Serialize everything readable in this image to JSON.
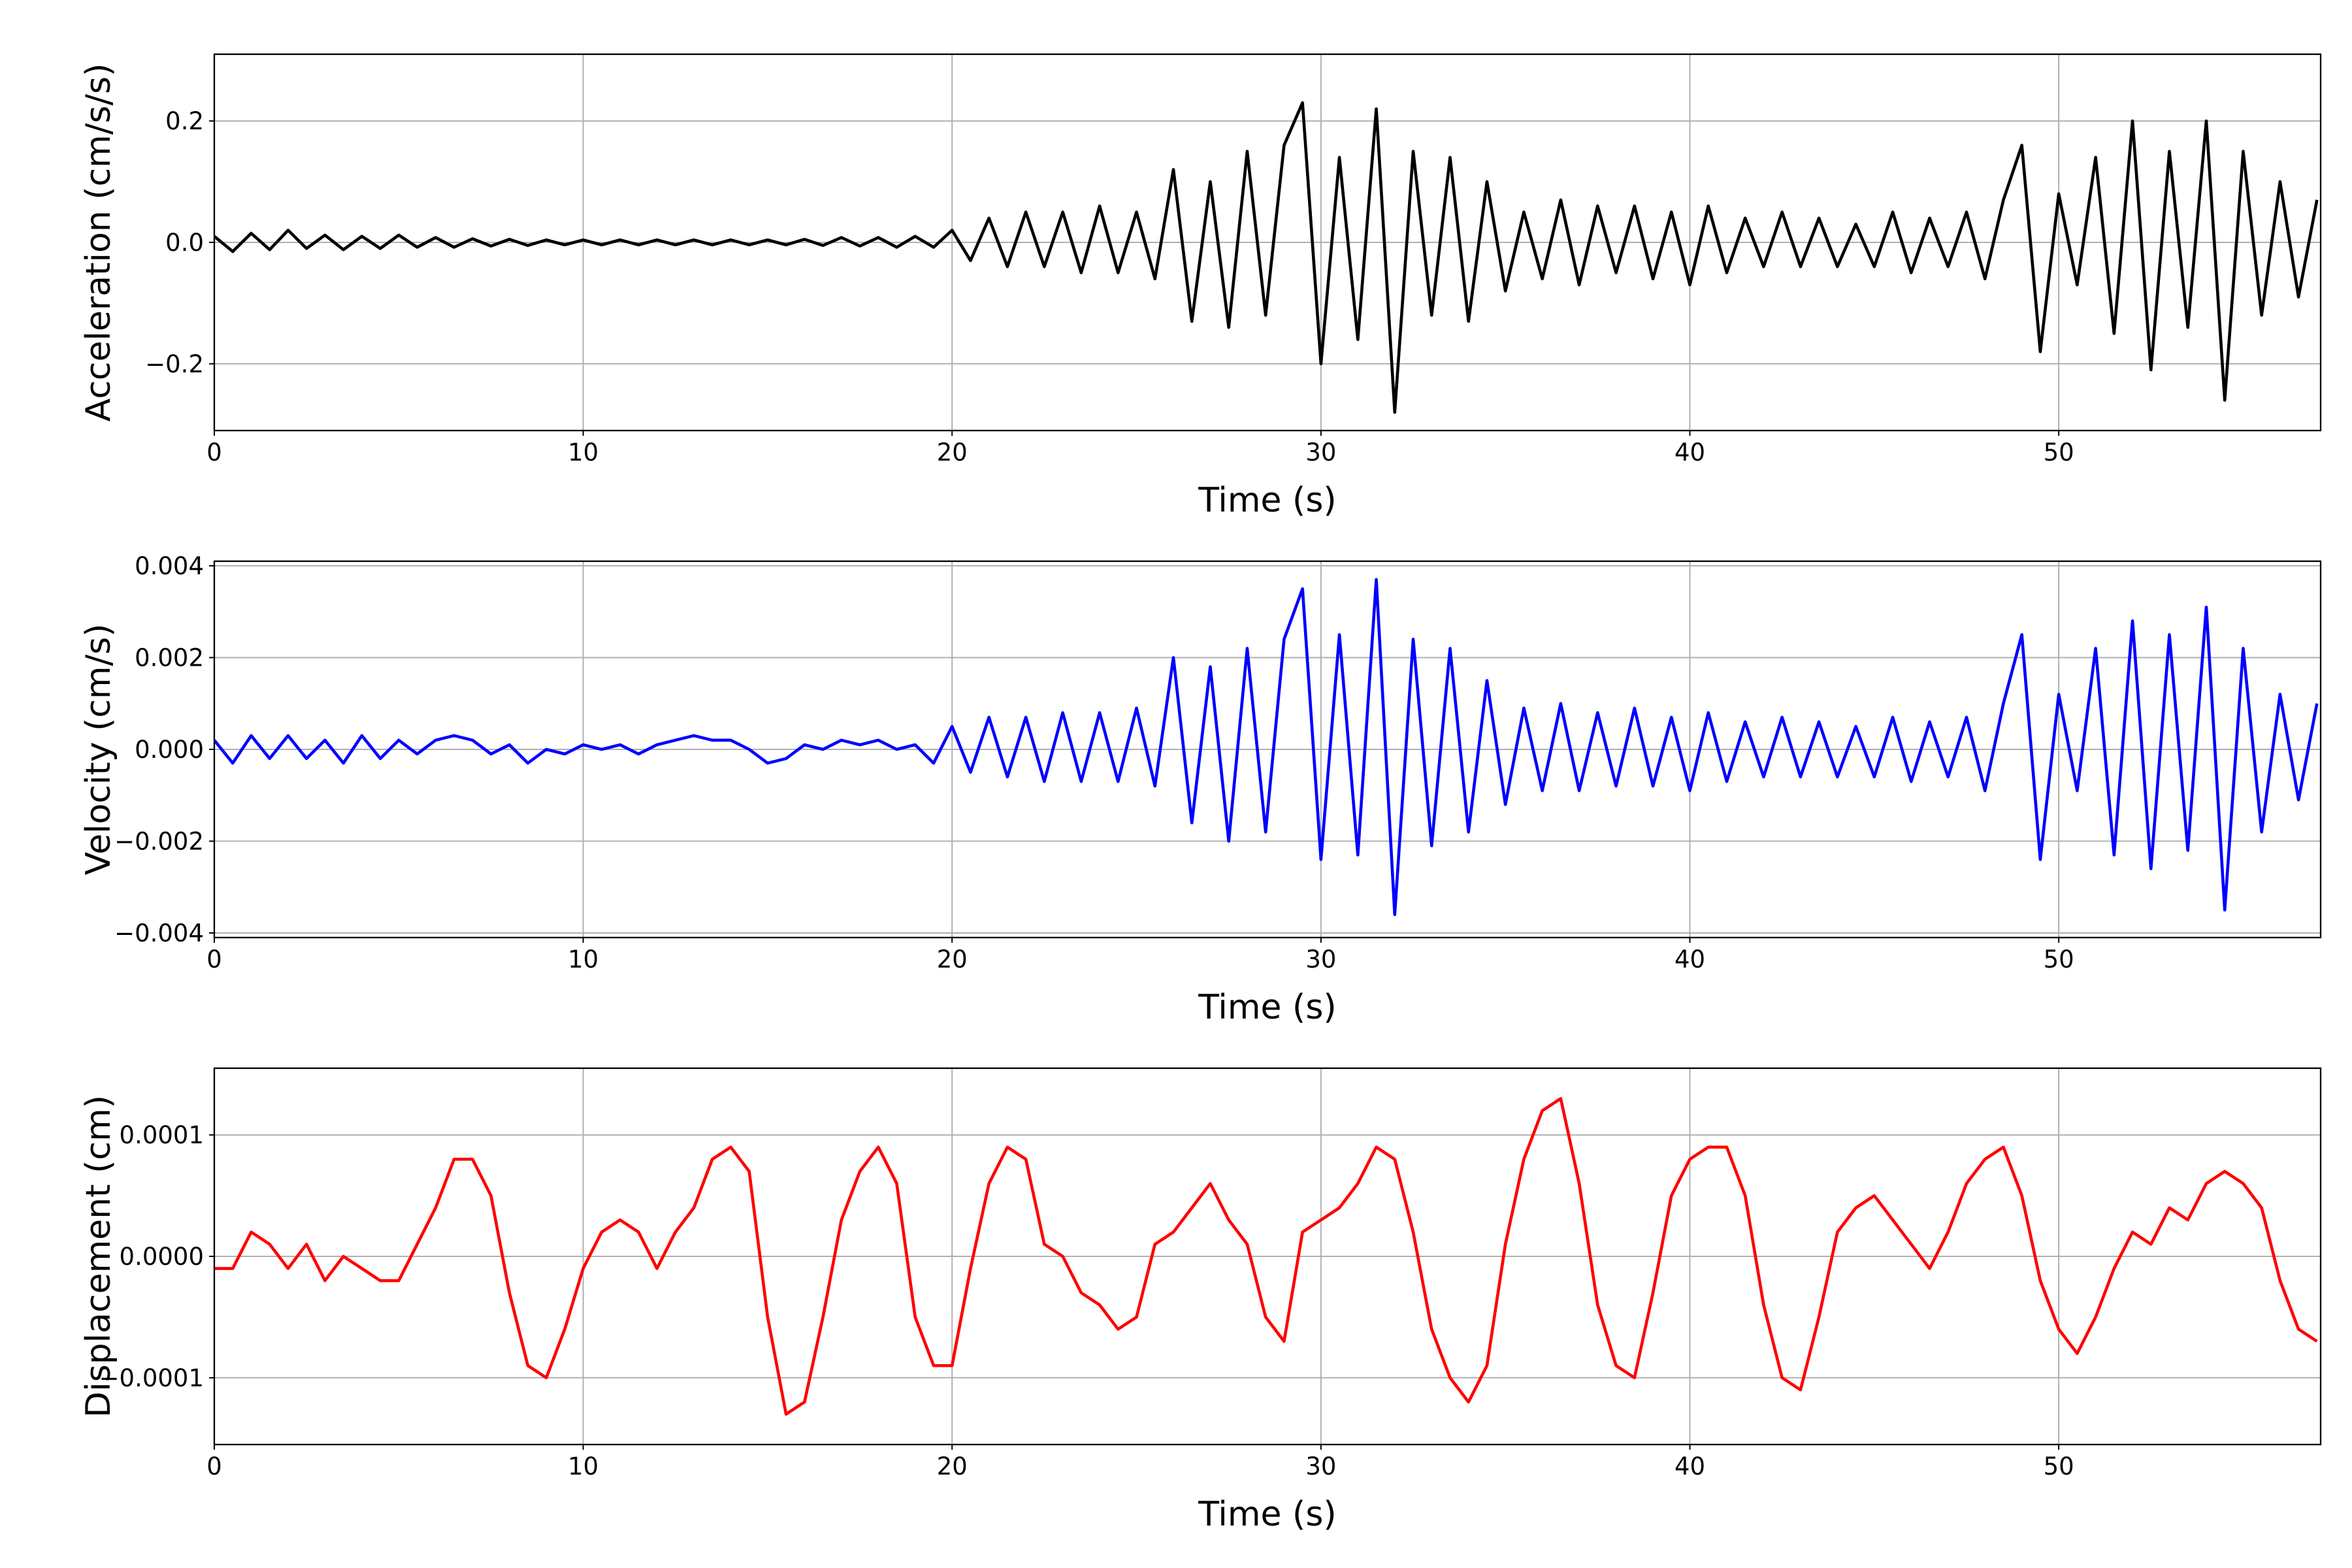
{
  "chart_data": [
    {
      "type": "line",
      "xlabel": "Time (s)",
      "ylabel": "Acceleration (cm/s/s)",
      "color": "#000000",
      "grid": true,
      "xlim": [
        0,
        57.1
      ],
      "xticks": [
        0,
        10,
        20,
        30,
        40,
        50
      ],
      "ylim": [
        -0.31,
        0.31
      ],
      "yticks": [
        {
          "value": -0.2,
          "label": "−0.2"
        },
        {
          "value": 0,
          "label": "0.0"
        },
        {
          "value": 0.2,
          "label": "0.2"
        }
      ],
      "x": [
        0,
        0.5,
        1,
        1.5,
        2,
        2.5,
        3,
        3.5,
        4,
        4.5,
        5,
        5.5,
        6,
        6.5,
        7,
        7.5,
        8,
        8.5,
        9,
        9.5,
        10,
        10.5,
        11,
        11.5,
        12,
        12.5,
        13,
        13.5,
        14,
        14.5,
        15,
        15.5,
        16,
        16.5,
        17,
        17.5,
        18,
        18.5,
        19,
        19.5,
        20,
        20.5,
        21,
        21.5,
        22,
        22.5,
        23,
        23.5,
        24,
        24.5,
        25,
        25.5,
        26,
        26.5,
        27,
        27.5,
        28,
        28.5,
        29,
        29.5,
        30,
        30.5,
        31,
        31.5,
        32,
        32.5,
        33,
        33.5,
        34,
        34.5,
        35,
        35.5,
        36,
        36.5,
        37,
        37.5,
        38,
        38.5,
        39,
        39.5,
        40,
        40.5,
        41,
        41.5,
        42,
        42.5,
        43,
        43.5,
        44,
        44.5,
        45,
        45.5,
        46,
        46.5,
        47,
        47.5,
        48,
        48.5,
        49,
        49.5,
        50,
        50.5,
        51,
        51.5,
        52,
        52.5,
        53,
        53.5,
        54,
        54.5,
        55,
        55.5,
        56,
        56.5,
        57
      ],
      "values": [
        0.01,
        -0.015,
        0.015,
        -0.012,
        0.02,
        -0.01,
        0.012,
        -0.012,
        0.01,
        -0.01,
        0.012,
        -0.008,
        0.008,
        -0.008,
        0.006,
        -0.006,
        0.005,
        -0.005,
        0.004,
        -0.004,
        0.004,
        -0.004,
        0.004,
        -0.004,
        0.004,
        -0.004,
        0.004,
        -0.004,
        0.004,
        -0.004,
        0.004,
        -0.004,
        0.005,
        -0.005,
        0.008,
        -0.006,
        0.008,
        -0.008,
        0.01,
        -0.008,
        0.02,
        -0.03,
        0.04,
        -0.04,
        0.05,
        -0.04,
        0.05,
        -0.05,
        0.06,
        -0.05,
        0.05,
        -0.06,
        0.12,
        -0.13,
        0.1,
        -0.14,
        0.15,
        -0.12,
        0.16,
        0.23,
        -0.2,
        0.14,
        -0.16,
        0.22,
        -0.28,
        0.15,
        -0.12,
        0.14,
        -0.13,
        0.1,
        -0.08,
        0.05,
        -0.06,
        0.07,
        -0.07,
        0.06,
        -0.05,
        0.06,
        -0.06,
        0.05,
        -0.07,
        0.06,
        -0.05,
        0.04,
        -0.04,
        0.05,
        -0.04,
        0.04,
        -0.04,
        0.03,
        -0.04,
        0.05,
        -0.05,
        0.04,
        -0.04,
        0.05,
        -0.06,
        0.07,
        0.16,
        -0.18,
        0.08,
        -0.07,
        0.14,
        -0.15,
        0.2,
        -0.21,
        0.15,
        -0.14,
        0.2,
        -0.26,
        0.15,
        -0.12,
        0.1,
        -0.09,
        0.07
      ]
    },
    {
      "type": "line",
      "xlabel": "Time (s)",
      "ylabel": "Velocity (cm/s)",
      "color": "#0000ff",
      "grid": true,
      "xlim": [
        0,
        57.1
      ],
      "xticks": [
        0,
        10,
        20,
        30,
        40,
        50
      ],
      "ylim": [
        -0.0041,
        0.0041
      ],
      "yticks": [
        {
          "value": -0.004,
          "label": "−0.004"
        },
        {
          "value": -0.002,
          "label": "−0.002"
        },
        {
          "value": 0,
          "label": "0.000"
        },
        {
          "value": 0.002,
          "label": "0.002"
        },
        {
          "value": 0.004,
          "label": "0.004"
        }
      ],
      "x": [
        0,
        0.5,
        1,
        1.5,
        2,
        2.5,
        3,
        3.5,
        4,
        4.5,
        5,
        5.5,
        6,
        6.5,
        7,
        7.5,
        8,
        8.5,
        9,
        9.5,
        10,
        10.5,
        11,
        11.5,
        12,
        12.5,
        13,
        13.5,
        14,
        14.5,
        15,
        15.5,
        16,
        16.5,
        17,
        17.5,
        18,
        18.5,
        19,
        19.5,
        20,
        20.5,
        21,
        21.5,
        22,
        22.5,
        23,
        23.5,
        24,
        24.5,
        25,
        25.5,
        26,
        26.5,
        27,
        27.5,
        28,
        28.5,
        29,
        29.5,
        30,
        30.5,
        31,
        31.5,
        32,
        32.5,
        33,
        33.5,
        34,
        34.5,
        35,
        35.5,
        36,
        36.5,
        37,
        37.5,
        38,
        38.5,
        39,
        39.5,
        40,
        40.5,
        41,
        41.5,
        42,
        42.5,
        43,
        43.5,
        44,
        44.5,
        45,
        45.5,
        46,
        46.5,
        47,
        47.5,
        48,
        48.5,
        49,
        49.5,
        50,
        50.5,
        51,
        51.5,
        52,
        52.5,
        53,
        53.5,
        54,
        54.5,
        55,
        55.5,
        56,
        56.5,
        57
      ],
      "values": [
        0.0002,
        -0.0003,
        0.0003,
        -0.0002,
        0.0003,
        -0.0002,
        0.0002,
        -0.0003,
        0.0003,
        -0.0002,
        0.0002,
        -0.0001,
        0.0002,
        0.0003,
        0.0002,
        -0.0001,
        0.0001,
        -0.0003,
        0,
        -0.0001,
        0.0001,
        0,
        0.0001,
        -0.0001,
        0.0001,
        0.0002,
        0.0003,
        0.0002,
        0.0002,
        0,
        -0.0003,
        -0.0002,
        0.0001,
        0,
        0.0002,
        0.0001,
        0.0002,
        0,
        0.0001,
        -0.0003,
        0.0005,
        -0.0005,
        0.0007,
        -0.0006,
        0.0007,
        -0.0007,
        0.0008,
        -0.0007,
        0.0008,
        -0.0007,
        0.0009,
        -0.0008,
        0.002,
        -0.0016,
        0.0018,
        -0.002,
        0.0022,
        -0.0018,
        0.0024,
        0.0035,
        -0.0024,
        0.0025,
        -0.0023,
        0.0037,
        -0.0036,
        0.0024,
        -0.0021,
        0.0022,
        -0.0018,
        0.0015,
        -0.0012,
        0.0009,
        -0.0009,
        0.001,
        -0.0009,
        0.0008,
        -0.0008,
        0.0009,
        -0.0008,
        0.0007,
        -0.0009,
        0.0008,
        -0.0007,
        0.0006,
        -0.0006,
        0.0007,
        -0.0006,
        0.0006,
        -0.0006,
        0.0005,
        -0.0006,
        0.0007,
        -0.0007,
        0.0006,
        -0.0006,
        0.0007,
        -0.0009,
        0.001,
        0.0025,
        -0.0024,
        0.0012,
        -0.0009,
        0.0022,
        -0.0023,
        0.0028,
        -0.0026,
        0.0025,
        -0.0022,
        0.0031,
        -0.0035,
        0.0022,
        -0.0018,
        0.0012,
        -0.0011,
        0.001
      ]
    },
    {
      "type": "line",
      "xlabel": "Time (s)",
      "ylabel": "Displacement (cm)",
      "color": "#ff0000",
      "grid": true,
      "xlim": [
        0,
        57.1
      ],
      "xticks": [
        0,
        10,
        20,
        30,
        40,
        50
      ],
      "ylim": [
        -0.000155,
        0.000155
      ],
      "yticks": [
        {
          "value": -0.0001,
          "label": "−0.0001"
        },
        {
          "value": 0,
          "label": "0.0000"
        },
        {
          "value": 0.0001,
          "label": "0.0001"
        }
      ],
      "x": [
        0,
        0.5,
        1,
        1.5,
        2,
        2.5,
        3,
        3.5,
        4,
        4.5,
        5,
        5.5,
        6,
        6.5,
        7,
        7.5,
        8,
        8.5,
        9,
        9.5,
        10,
        10.5,
        11,
        11.5,
        12,
        12.5,
        13,
        13.5,
        14,
        14.5,
        15,
        15.5,
        16,
        16.5,
        17,
        17.5,
        18,
        18.5,
        19,
        19.5,
        20,
        20.5,
        21,
        21.5,
        22,
        22.5,
        23,
        23.5,
        24,
        24.5,
        25,
        25.5,
        26,
        26.5,
        27,
        27.5,
        28,
        28.5,
        29,
        29.5,
        30,
        30.5,
        31,
        31.5,
        32,
        32.5,
        33,
        33.5,
        34,
        34.5,
        35,
        35.5,
        36,
        36.5,
        37,
        37.5,
        38,
        38.5,
        39,
        39.5,
        40,
        40.5,
        41,
        41.5,
        42,
        42.5,
        43,
        43.5,
        44,
        44.5,
        45,
        45.5,
        46,
        46.5,
        47,
        47.5,
        48,
        48.5,
        49,
        49.5,
        50,
        50.5,
        51,
        51.5,
        52,
        52.5,
        53,
        53.5,
        54,
        54.5,
        55,
        55.5,
        56,
        56.5,
        57
      ],
      "values": [
        -1e-05,
        -1e-05,
        2e-05,
        1e-05,
        -1e-05,
        1e-05,
        -2e-05,
        0,
        -1e-05,
        -2e-05,
        -2e-05,
        1e-05,
        4e-05,
        8e-05,
        8e-05,
        5e-05,
        -3e-05,
        -9e-05,
        -0.0001,
        -6e-05,
        -1e-05,
        2e-05,
        3e-05,
        2e-05,
        -1e-05,
        2e-05,
        4e-05,
        8e-05,
        9e-05,
        7e-05,
        -5e-05,
        -0.00013,
        -0.00012,
        -5e-05,
        3e-05,
        7e-05,
        9e-05,
        6e-05,
        -5e-05,
        -9e-05,
        -9e-05,
        -1e-05,
        6e-05,
        9e-05,
        8e-05,
        1e-05,
        0,
        -3e-05,
        -4e-05,
        -6e-05,
        -5e-05,
        1e-05,
        2e-05,
        4e-05,
        6e-05,
        3e-05,
        1e-05,
        -5e-05,
        -7e-05,
        2e-05,
        3e-05,
        4e-05,
        6e-05,
        9e-05,
        8e-05,
        2e-05,
        -6e-05,
        -0.0001,
        -0.00012,
        -9e-05,
        1e-05,
        8e-05,
        0.00012,
        0.00013,
        6e-05,
        -4e-05,
        -9e-05,
        -0.0001,
        -3e-05,
        5e-05,
        8e-05,
        9e-05,
        9e-05,
        5e-05,
        -4e-05,
        -0.0001,
        -0.00011,
        -5e-05,
        2e-05,
        4e-05,
        5e-05,
        3e-05,
        1e-05,
        -1e-05,
        2e-05,
        6e-05,
        8e-05,
        9e-05,
        5e-05,
        -2e-05,
        -6e-05,
        -8e-05,
        -5e-05,
        -1e-05,
        2e-05,
        1e-05,
        4e-05,
        3e-05,
        6e-05,
        7e-05,
        6e-05,
        4e-05,
        -2e-05,
        -6e-05,
        -7e-05
      ]
    }
  ]
}
